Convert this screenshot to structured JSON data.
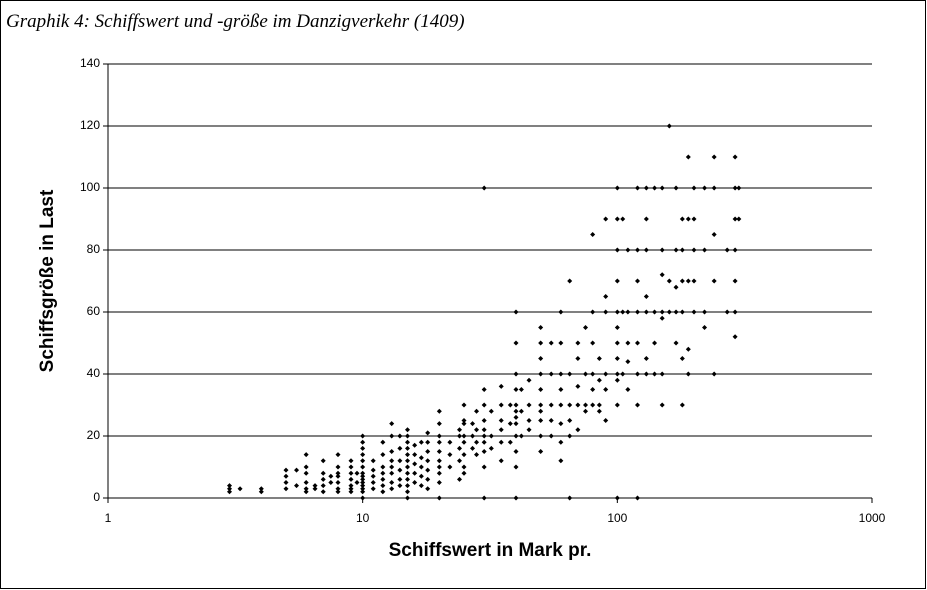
{
  "chart_data": {
    "type": "scatter",
    "title": "Graphik 4: Schiffswert und -größe im Danzigverkehr (1409)",
    "x_label": "Schiffswert in Mark pr.",
    "y_label": "Schiffsgröße in Last",
    "x_log": true,
    "grid": true,
    "color": "#000000",
    "xlim": [
      1,
      1000
    ],
    "xticks": [
      1,
      10,
      100,
      1000
    ],
    "ylim": [
      0,
      140
    ],
    "yticks": [
      0,
      20,
      40,
      60,
      80,
      100,
      120,
      140
    ],
    "points": [
      [
        3,
        2
      ],
      [
        3,
        3
      ],
      [
        3,
        4
      ],
      [
        3.3,
        3
      ],
      [
        4,
        2
      ],
      [
        4,
        3
      ],
      [
        5,
        3
      ],
      [
        5,
        5
      ],
      [
        5,
        7
      ],
      [
        5,
        9
      ],
      [
        5.5,
        4
      ],
      [
        5.5,
        9
      ],
      [
        6,
        2
      ],
      [
        6,
        3
      ],
      [
        6,
        5
      ],
      [
        6,
        8
      ],
      [
        6,
        10
      ],
      [
        6,
        14
      ],
      [
        6.5,
        3
      ],
      [
        6.5,
        4
      ],
      [
        7,
        2
      ],
      [
        7,
        4
      ],
      [
        7,
        6
      ],
      [
        7,
        8
      ],
      [
        7,
        12
      ],
      [
        7.5,
        5
      ],
      [
        7.5,
        7
      ],
      [
        8,
        2
      ],
      [
        8,
        3
      ],
      [
        8,
        5
      ],
      [
        8,
        7
      ],
      [
        8,
        8
      ],
      [
        8,
        10
      ],
      [
        8,
        14
      ],
      [
        9,
        2
      ],
      [
        9,
        3
      ],
      [
        9,
        4
      ],
      [
        9,
        6
      ],
      [
        9,
        8
      ],
      [
        9,
        10
      ],
      [
        9,
        12
      ],
      [
        9.5,
        5
      ],
      [
        9.5,
        8
      ],
      [
        10,
        0
      ],
      [
        10,
        2
      ],
      [
        10,
        3
      ],
      [
        10,
        4
      ],
      [
        10,
        5
      ],
      [
        10,
        6
      ],
      [
        10,
        7
      ],
      [
        10,
        8
      ],
      [
        10,
        10
      ],
      [
        10,
        12
      ],
      [
        10,
        14
      ],
      [
        10,
        16
      ],
      [
        10,
        18
      ],
      [
        10,
        20
      ],
      [
        11,
        3
      ],
      [
        11,
        5
      ],
      [
        11,
        7
      ],
      [
        11,
        9
      ],
      [
        11,
        12
      ],
      [
        12,
        2
      ],
      [
        12,
        4
      ],
      [
        12,
        6
      ],
      [
        12,
        8
      ],
      [
        12,
        10
      ],
      [
        12,
        14
      ],
      [
        12,
        18
      ],
      [
        13,
        3
      ],
      [
        13,
        5
      ],
      [
        13,
        8
      ],
      [
        13,
        10
      ],
      [
        13,
        12
      ],
      [
        13,
        15
      ],
      [
        13,
        20
      ],
      [
        13,
        24
      ],
      [
        14,
        4
      ],
      [
        14,
        6
      ],
      [
        14,
        9
      ],
      [
        14,
        12
      ],
      [
        14,
        16
      ],
      [
        14,
        20
      ],
      [
        15,
        0
      ],
      [
        15,
        2
      ],
      [
        15,
        4
      ],
      [
        15,
        6
      ],
      [
        15,
        8
      ],
      [
        15,
        10
      ],
      [
        15,
        12
      ],
      [
        15,
        14
      ],
      [
        15,
        16
      ],
      [
        15,
        18
      ],
      [
        15,
        20
      ],
      [
        15,
        22
      ],
      [
        16,
        5
      ],
      [
        16,
        8
      ],
      [
        16,
        11
      ],
      [
        16,
        14
      ],
      [
        16,
        17
      ],
      [
        17,
        4
      ],
      [
        17,
        7
      ],
      [
        17,
        10
      ],
      [
        17,
        13
      ],
      [
        17,
        18
      ],
      [
        18,
        3
      ],
      [
        18,
        6
      ],
      [
        18,
        9
      ],
      [
        18,
        12
      ],
      [
        18,
        15
      ],
      [
        18,
        18
      ],
      [
        18,
        21
      ],
      [
        20,
        0
      ],
      [
        20,
        5
      ],
      [
        20,
        8
      ],
      [
        20,
        10
      ],
      [
        20,
        12
      ],
      [
        20,
        15
      ],
      [
        20,
        18
      ],
      [
        20,
        20
      ],
      [
        20,
        24
      ],
      [
        20,
        28
      ],
      [
        22,
        10
      ],
      [
        22,
        14
      ],
      [
        22,
        18
      ],
      [
        24,
        6
      ],
      [
        24,
        12
      ],
      [
        24,
        16
      ],
      [
        24,
        20
      ],
      [
        24,
        22
      ],
      [
        25,
        8
      ],
      [
        25,
        10
      ],
      [
        25,
        14
      ],
      [
        25,
        18
      ],
      [
        25,
        20
      ],
      [
        25,
        24
      ],
      [
        25,
        25
      ],
      [
        25,
        30
      ],
      [
        27,
        16
      ],
      [
        27,
        20
      ],
      [
        27,
        24
      ],
      [
        28,
        14
      ],
      [
        28,
        18
      ],
      [
        28,
        22
      ],
      [
        28,
        28
      ],
      [
        30,
        0
      ],
      [
        30,
        10
      ],
      [
        30,
        15
      ],
      [
        30,
        18
      ],
      [
        30,
        20
      ],
      [
        30,
        22
      ],
      [
        30,
        25
      ],
      [
        30,
        30
      ],
      [
        30,
        35
      ],
      [
        30,
        100
      ],
      [
        32,
        16
      ],
      [
        32,
        20
      ],
      [
        32,
        28
      ],
      [
        35,
        12
      ],
      [
        35,
        18
      ],
      [
        35,
        22
      ],
      [
        35,
        25
      ],
      [
        35,
        30
      ],
      [
        35,
        36
      ],
      [
        38,
        18
      ],
      [
        38,
        24
      ],
      [
        38,
        30
      ],
      [
        40,
        0
      ],
      [
        40,
        10
      ],
      [
        40,
        15
      ],
      [
        40,
        20
      ],
      [
        40,
        24
      ],
      [
        40,
        26
      ],
      [
        40,
        28
      ],
      [
        40,
        30
      ],
      [
        40,
        35
      ],
      [
        40,
        40
      ],
      [
        40,
        50
      ],
      [
        40,
        60
      ],
      [
        42,
        20
      ],
      [
        42,
        28
      ],
      [
        42,
        35
      ],
      [
        45,
        22
      ],
      [
        45,
        25
      ],
      [
        45,
        30
      ],
      [
        45,
        38
      ],
      [
        50,
        15
      ],
      [
        50,
        20
      ],
      [
        50,
        25
      ],
      [
        50,
        28
      ],
      [
        50,
        30
      ],
      [
        50,
        35
      ],
      [
        50,
        40
      ],
      [
        50,
        45
      ],
      [
        50,
        50
      ],
      [
        50,
        55
      ],
      [
        55,
        20
      ],
      [
        55,
        25
      ],
      [
        55,
        30
      ],
      [
        55,
        40
      ],
      [
        55,
        50
      ],
      [
        60,
        12
      ],
      [
        60,
        18
      ],
      [
        60,
        24
      ],
      [
        60,
        30
      ],
      [
        60,
        35
      ],
      [
        60,
        40
      ],
      [
        60,
        50
      ],
      [
        60,
        60
      ],
      [
        65,
        0
      ],
      [
        65,
        20
      ],
      [
        65,
        25
      ],
      [
        65,
        30
      ],
      [
        65,
        40
      ],
      [
        65,
        70
      ],
      [
        70,
        22
      ],
      [
        70,
        30
      ],
      [
        70,
        36
      ],
      [
        70,
        45
      ],
      [
        70,
        50
      ],
      [
        75,
        28
      ],
      [
        75,
        30
      ],
      [
        75,
        40
      ],
      [
        75,
        55
      ],
      [
        80,
        30
      ],
      [
        80,
        35
      ],
      [
        80,
        40
      ],
      [
        80,
        50
      ],
      [
        80,
        60
      ],
      [
        80,
        85
      ],
      [
        85,
        28
      ],
      [
        85,
        30
      ],
      [
        85,
        38
      ],
      [
        85,
        45
      ],
      [
        90,
        25
      ],
      [
        90,
        35
      ],
      [
        90,
        40
      ],
      [
        90,
        60
      ],
      [
        90,
        65
      ],
      [
        90,
        90
      ],
      [
        100,
        0
      ],
      [
        100,
        30
      ],
      [
        100,
        38
      ],
      [
        100,
        40
      ],
      [
        100,
        45
      ],
      [
        100,
        50
      ],
      [
        100,
        55
      ],
      [
        100,
        60
      ],
      [
        100,
        70
      ],
      [
        100,
        80
      ],
      [
        100,
        90
      ],
      [
        100,
        100
      ],
      [
        105,
        40
      ],
      [
        105,
        60
      ],
      [
        105,
        90
      ],
      [
        110,
        35
      ],
      [
        110,
        44
      ],
      [
        110,
        50
      ],
      [
        110,
        60
      ],
      [
        110,
        80
      ],
      [
        120,
        0
      ],
      [
        120,
        30
      ],
      [
        120,
        40
      ],
      [
        120,
        50
      ],
      [
        120,
        60
      ],
      [
        120,
        70
      ],
      [
        120,
        80
      ],
      [
        120,
        100
      ],
      [
        130,
        40
      ],
      [
        130,
        45
      ],
      [
        130,
        60
      ],
      [
        130,
        65
      ],
      [
        130,
        80
      ],
      [
        130,
        90
      ],
      [
        130,
        100
      ],
      [
        140,
        40
      ],
      [
        140,
        50
      ],
      [
        140,
        60
      ],
      [
        140,
        100
      ],
      [
        150,
        30
      ],
      [
        150,
        40
      ],
      [
        150,
        58
      ],
      [
        150,
        60
      ],
      [
        150,
        72
      ],
      [
        150,
        80
      ],
      [
        150,
        100
      ],
      [
        160,
        60
      ],
      [
        160,
        70
      ],
      [
        160,
        120
      ],
      [
        170,
        50
      ],
      [
        170,
        60
      ],
      [
        170,
        68
      ],
      [
        170,
        80
      ],
      [
        170,
        100
      ],
      [
        180,
        30
      ],
      [
        180,
        45
      ],
      [
        180,
        60
      ],
      [
        180,
        70
      ],
      [
        180,
        80
      ],
      [
        180,
        90
      ],
      [
        190,
        40
      ],
      [
        190,
        48
      ],
      [
        190,
        70
      ],
      [
        190,
        90
      ],
      [
        190,
        110
      ],
      [
        200,
        60
      ],
      [
        200,
        70
      ],
      [
        200,
        80
      ],
      [
        200,
        90
      ],
      [
        200,
        100
      ],
      [
        220,
        55
      ],
      [
        220,
        60
      ],
      [
        220,
        80
      ],
      [
        220,
        100
      ],
      [
        240,
        40
      ],
      [
        240,
        70
      ],
      [
        240,
        85
      ],
      [
        240,
        100
      ],
      [
        240,
        110
      ],
      [
        270,
        60
      ],
      [
        270,
        80
      ],
      [
        290,
        52
      ],
      [
        290,
        60
      ],
      [
        290,
        70
      ],
      [
        290,
        80
      ],
      [
        290,
        90
      ],
      [
        290,
        100
      ],
      [
        290,
        110
      ],
      [
        300,
        90
      ],
      [
        300,
        100
      ]
    ]
  }
}
